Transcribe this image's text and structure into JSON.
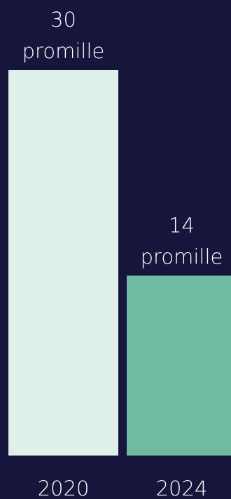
{
  "chart_data": {
    "type": "bar",
    "categories": [
      "2020",
      "2024"
    ],
    "values": [
      30,
      14
    ],
    "value_labels": [
      {
        "number": "30",
        "unit": "promille"
      },
      {
        "number": "14",
        "unit": "promille"
      }
    ],
    "title": "",
    "xlabel": "",
    "ylabel": "",
    "ylim": [
      0,
      30
    ],
    "grid": false,
    "legend": "none"
  },
  "colors": {
    "background": "#16153c",
    "bars": [
      "#dff0ea",
      "#6fbb9f"
    ],
    "text": "#ffffff"
  }
}
